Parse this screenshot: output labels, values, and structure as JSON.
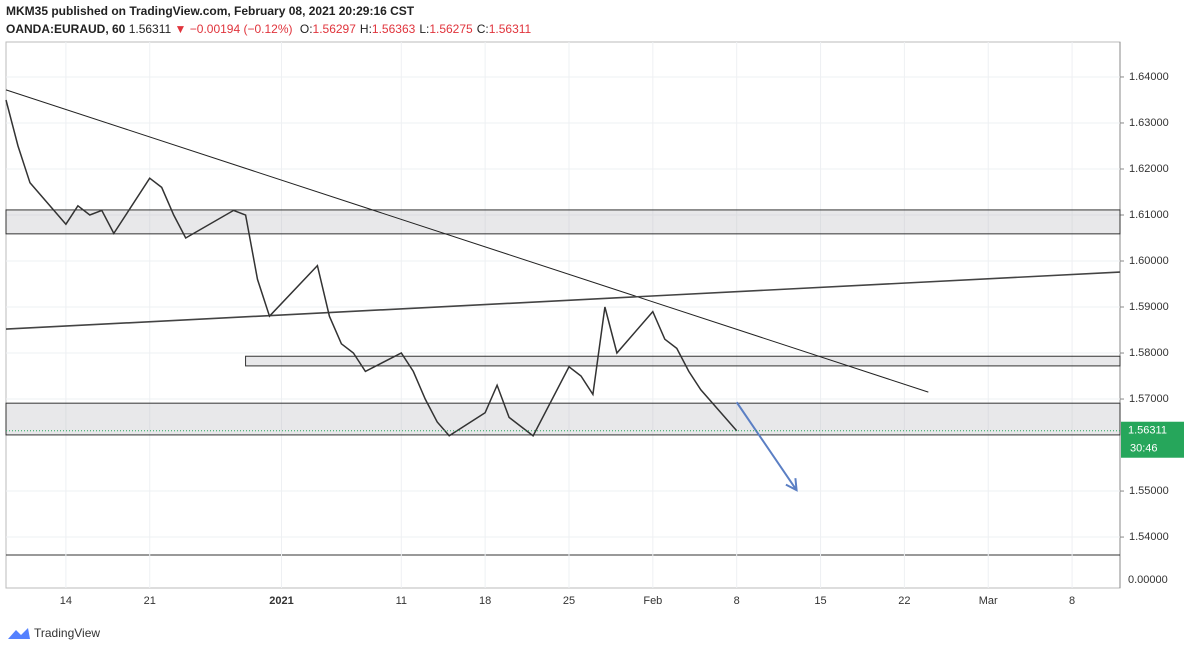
{
  "header": {
    "published": "MKM35 published on TradingView.com, February 08, 2021 20:29:16 CST",
    "symbol": "OANDA:EURAUD, 60",
    "last": "1.56311",
    "arrow": "▼",
    "change": "−0.00194 (−0.12%)",
    "ohlc": [
      {
        "label": "O:",
        "value": "1.56297"
      },
      {
        "label": "H:",
        "value": "1.56363"
      },
      {
        "label": "L:",
        "value": "1.56275"
      },
      {
        "label": "C:",
        "value": "1.56311"
      }
    ]
  },
  "chart_data": {
    "type": "line",
    "color": "#333333",
    "x": [
      "2020-12-09",
      "2020-12-10",
      "2020-12-11",
      "2020-12-14",
      "2020-12-15",
      "2020-12-16",
      "2020-12-17",
      "2020-12-18",
      "2020-12-21",
      "2020-12-22",
      "2020-12-23",
      "2020-12-24",
      "2020-12-28",
      "2020-12-29",
      "2020-12-30",
      "2020-12-31",
      "2021-01-04",
      "2021-01-05",
      "2021-01-06",
      "2021-01-07",
      "2021-01-08",
      "2021-01-11",
      "2021-01-12",
      "2021-01-13",
      "2021-01-14",
      "2021-01-15",
      "2021-01-18",
      "2021-01-19",
      "2021-01-20",
      "2021-01-21",
      "2021-01-22",
      "2021-01-25",
      "2021-01-26",
      "2021-01-27",
      "2021-01-28",
      "2021-01-29",
      "2021-02-01",
      "2021-02-02",
      "2021-02-03",
      "2021-02-04",
      "2021-02-05",
      "2021-02-08"
    ],
    "values": [
      1.635,
      1.625,
      1.617,
      1.608,
      1.612,
      1.61,
      1.611,
      1.606,
      1.618,
      1.616,
      1.61,
      1.605,
      1.611,
      1.61,
      1.596,
      1.588,
      1.599,
      1.588,
      1.582,
      1.58,
      1.576,
      1.58,
      1.576,
      1.57,
      1.565,
      1.562,
      1.567,
      1.573,
      1.566,
      1.564,
      1.562,
      1.577,
      1.575,
      1.571,
      1.59,
      1.58,
      1.589,
      1.583,
      1.581,
      1.576,
      1.572,
      1.56311
    ],
    "xlim": [
      "2020-12-09",
      "2021-03-12"
    ],
    "xticks": [
      {
        "value": "2020-12-14",
        "label": "14"
      },
      {
        "value": "2020-12-21",
        "label": "21"
      },
      {
        "value": "2021-01-01",
        "label": "2021"
      },
      {
        "value": "2021-01-11",
        "label": "11"
      },
      {
        "value": "2021-01-18",
        "label": "18"
      },
      {
        "value": "2021-01-25",
        "label": "25"
      },
      {
        "value": "2021-02-01",
        "label": "Feb"
      },
      {
        "value": "2021-02-08",
        "label": "8"
      },
      {
        "value": "2021-02-15",
        "label": "15"
      },
      {
        "value": "2021-02-22",
        "label": "22"
      },
      {
        "value": "2021-03-01",
        "label": "Mar"
      },
      {
        "value": "2021-03-08",
        "label": "8"
      }
    ],
    "ylim": [
      1.5361,
      1.6476
    ],
    "yticks": [
      {
        "value": 1.54,
        "label": "1.54000"
      },
      {
        "value": 1.55,
        "label": "1.55000"
      },
      {
        "value": 1.57,
        "label": "1.57000"
      },
      {
        "value": 1.58,
        "label": "1.58000"
      },
      {
        "value": 1.59,
        "label": "1.59000"
      },
      {
        "value": 1.6,
        "label": "1.60000"
      },
      {
        "value": 1.61,
        "label": "1.61000"
      },
      {
        "value": 1.62,
        "label": "1.62000"
      },
      {
        "value": 1.63,
        "label": "1.63000"
      },
      {
        "value": 1.64,
        "label": "1.64000"
      }
    ],
    "grid": true,
    "last_price": {
      "value": 1.56311,
      "label": "1.56311",
      "color": "#26a65b"
    },
    "countdown": "30:46",
    "lower_pane": {
      "yticks": [
        {
          "value": 0,
          "label": "0.00000"
        }
      ]
    },
    "drawings": {
      "trend_lines": [
        {
          "x": [
            "2020-12-09",
            "2021-02-24"
          ],
          "y": [
            1.6372,
            1.5715
          ],
          "color": "#222222"
        },
        {
          "x": [
            "2020-12-09",
            "2021-03-12"
          ],
          "y": [
            1.5852,
            1.5976
          ],
          "color": "#444444"
        }
      ],
      "zones": [
        {
          "x": [
            "2020-12-09",
            "2021-03-12"
          ],
          "y": [
            1.6059,
            1.6111
          ]
        },
        {
          "x": [
            "2020-12-29",
            "2021-03-12"
          ],
          "y": [
            1.5772,
            1.5793
          ]
        },
        {
          "x": [
            "2020-12-09",
            "2021-03-12"
          ],
          "y": [
            1.5622,
            1.5691
          ]
        }
      ],
      "arrow": {
        "x": [
          "2021-02-08",
          "2021-02-13"
        ],
        "y": [
          1.5693,
          1.5502
        ],
        "color": "#5b7fc4"
      }
    }
  },
  "footer": "TradingView"
}
